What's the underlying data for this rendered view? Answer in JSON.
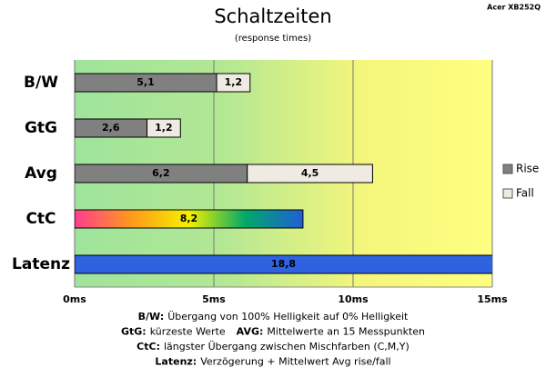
{
  "chart_data": {
    "type": "hbar_stacked",
    "title": "Schaltzeiten",
    "subtitle": "(response times)",
    "model": "Acer XB252Q",
    "categories": [
      "B/W",
      "GtG",
      "Avg",
      "CtC",
      "Latenz"
    ],
    "series": [
      {
        "name": "Rise",
        "color": "#808080",
        "values": [
          5.1,
          2.6,
          6.2,
          null,
          null
        ],
        "value_labels": [
          "5,1",
          "2,6",
          "6,2",
          null,
          null
        ]
      },
      {
        "name": "Fall",
        "color": "#efebe3",
        "values": [
          1.2,
          1.2,
          4.5,
          null,
          null
        ],
        "value_labels": [
          "1,2",
          "1,2",
          "4,5",
          null,
          null
        ]
      }
    ],
    "single_bars": {
      "values": [
        null,
        null,
        null,
        8.2,
        18.8
      ],
      "value_labels": [
        null,
        null,
        null,
        "8,2",
        "18,8"
      ],
      "colors": [
        null,
        null,
        null,
        [
          "#ff3d8f",
          "#ff9a1a",
          "#f4f000",
          "#00a86a",
          "#1f5fd6"
        ],
        "#2f62e0"
      ]
    },
    "xlim": [
      0,
      15
    ],
    "xticks": [
      {
        "value": 0,
        "label": "0ms"
      },
      {
        "value": 5,
        "label": "5ms"
      },
      {
        "value": 10,
        "label": "10ms"
      },
      {
        "value": 15,
        "label": "15ms"
      }
    ],
    "grid": true,
    "legend": "right",
    "notes": [
      [
        [
          "B/W:",
          "Übergang von 100% Helligkeit auf 0% Helligkeit"
        ]
      ],
      [
        [
          "GtG:",
          "kürzeste Werte"
        ],
        [
          "AVG:",
          "Mittelwerte an 15 Messpunkten"
        ]
      ],
      [
        [
          "CtC:",
          "längster Übergang zwischen Mischfarben (C,M,Y)"
        ]
      ],
      [
        [
          "Latenz:",
          "Verzögerung + Mittelwert Avg rise/fall"
        ]
      ]
    ]
  }
}
